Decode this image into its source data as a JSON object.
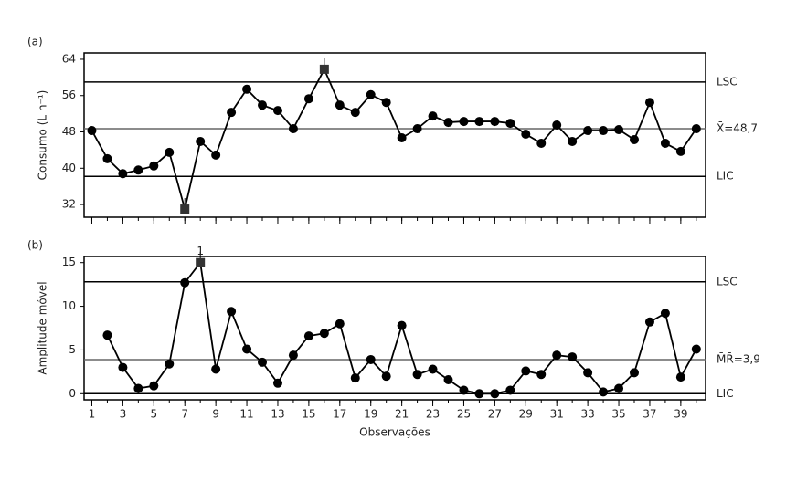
{
  "chart_data": [
    {
      "type": "line",
      "panel": "(a)",
      "ylabel": "Consumo (L h⁻¹)",
      "xlim": [
        0.5,
        40.6
      ],
      "ylim": [
        29.2,
        65.4
      ],
      "yticks": [
        32,
        40,
        48,
        56,
        64
      ],
      "x": [
        1,
        2,
        3,
        4,
        5,
        6,
        7,
        8,
        9,
        10,
        11,
        12,
        13,
        14,
        15,
        16,
        17,
        18,
        19,
        20,
        21,
        22,
        23,
        24,
        25,
        26,
        27,
        28,
        29,
        30,
        31,
        32,
        33,
        34,
        35,
        36,
        37,
        38,
        39,
        40
      ],
      "series": [
        {
          "color": "#000000",
          "values": [
            48.3,
            42.1,
            38.8,
            39.6,
            40.5,
            43.5,
            31.0,
            45.9,
            42.9,
            52.3,
            57.4,
            53.9,
            52.7,
            48.7,
            55.3,
            61.8,
            53.9,
            52.3,
            56.2,
            54.5,
            46.7,
            48.7,
            51.5,
            50.1,
            50.3,
            50.3,
            50.3,
            49.9,
            47.5,
            45.5,
            49.5,
            45.9,
            48.3,
            48.3,
            48.5,
            46.3,
            54.5,
            45.5,
            43.7,
            48.7
          ]
        }
      ],
      "flagged": [
        7,
        16
      ],
      "control_lines": [
        {
          "label": "LSC",
          "value": 59.0
        },
        {
          "label": "X̄=48,7",
          "value": 48.7
        },
        {
          "label": "LIC",
          "value": 38.2
        }
      ]
    },
    {
      "type": "line",
      "panel": "(b)",
      "ylabel": "Amplitude móvel",
      "xlabel": "Observações",
      "xlim": [
        0.5,
        40.6
      ],
      "ylim": [
        -0.7,
        15.7
      ],
      "yticks": [
        0,
        5,
        10,
        15
      ],
      "xticks": [
        1,
        3,
        5,
        7,
        9,
        11,
        13,
        15,
        17,
        19,
        21,
        23,
        25,
        27,
        29,
        31,
        33,
        35,
        37,
        39
      ],
      "x": [
        1,
        2,
        3,
        4,
        5,
        6,
        7,
        8,
        9,
        10,
        11,
        12,
        13,
        14,
        15,
        16,
        17,
        18,
        19,
        20,
        21,
        22,
        23,
        24,
        25,
        26,
        27,
        28,
        29,
        30,
        31,
        32,
        33,
        34,
        35,
        36,
        37,
        38,
        39,
        40
      ],
      "series": [
        {
          "color": "#000000",
          "values": [
            null,
            6.7,
            3.0,
            0.6,
            0.9,
            3.4,
            12.7,
            15.0,
            2.8,
            9.4,
            5.1,
            3.6,
            1.2,
            4.4,
            6.6,
            6.9,
            8.0,
            1.8,
            3.9,
            2.0,
            7.8,
            2.2,
            2.8,
            1.6,
            0.4,
            0.0,
            0.0,
            0.4,
            2.6,
            2.2,
            4.4,
            4.2,
            2.4,
            0.2,
            0.6,
            2.4,
            8.2,
            9.2,
            1.9,
            5.1
          ]
        }
      ],
      "flagged": [
        8
      ],
      "annotations": [
        {
          "text": "1",
          "x": 8
        }
      ],
      "control_lines": [
        {
          "label": "M̄R̄=3,9",
          "value": 3.9
        },
        {
          "label": "LSC",
          "value": 12.8
        },
        {
          "label": "LIC",
          "value": 0.0
        }
      ]
    }
  ]
}
